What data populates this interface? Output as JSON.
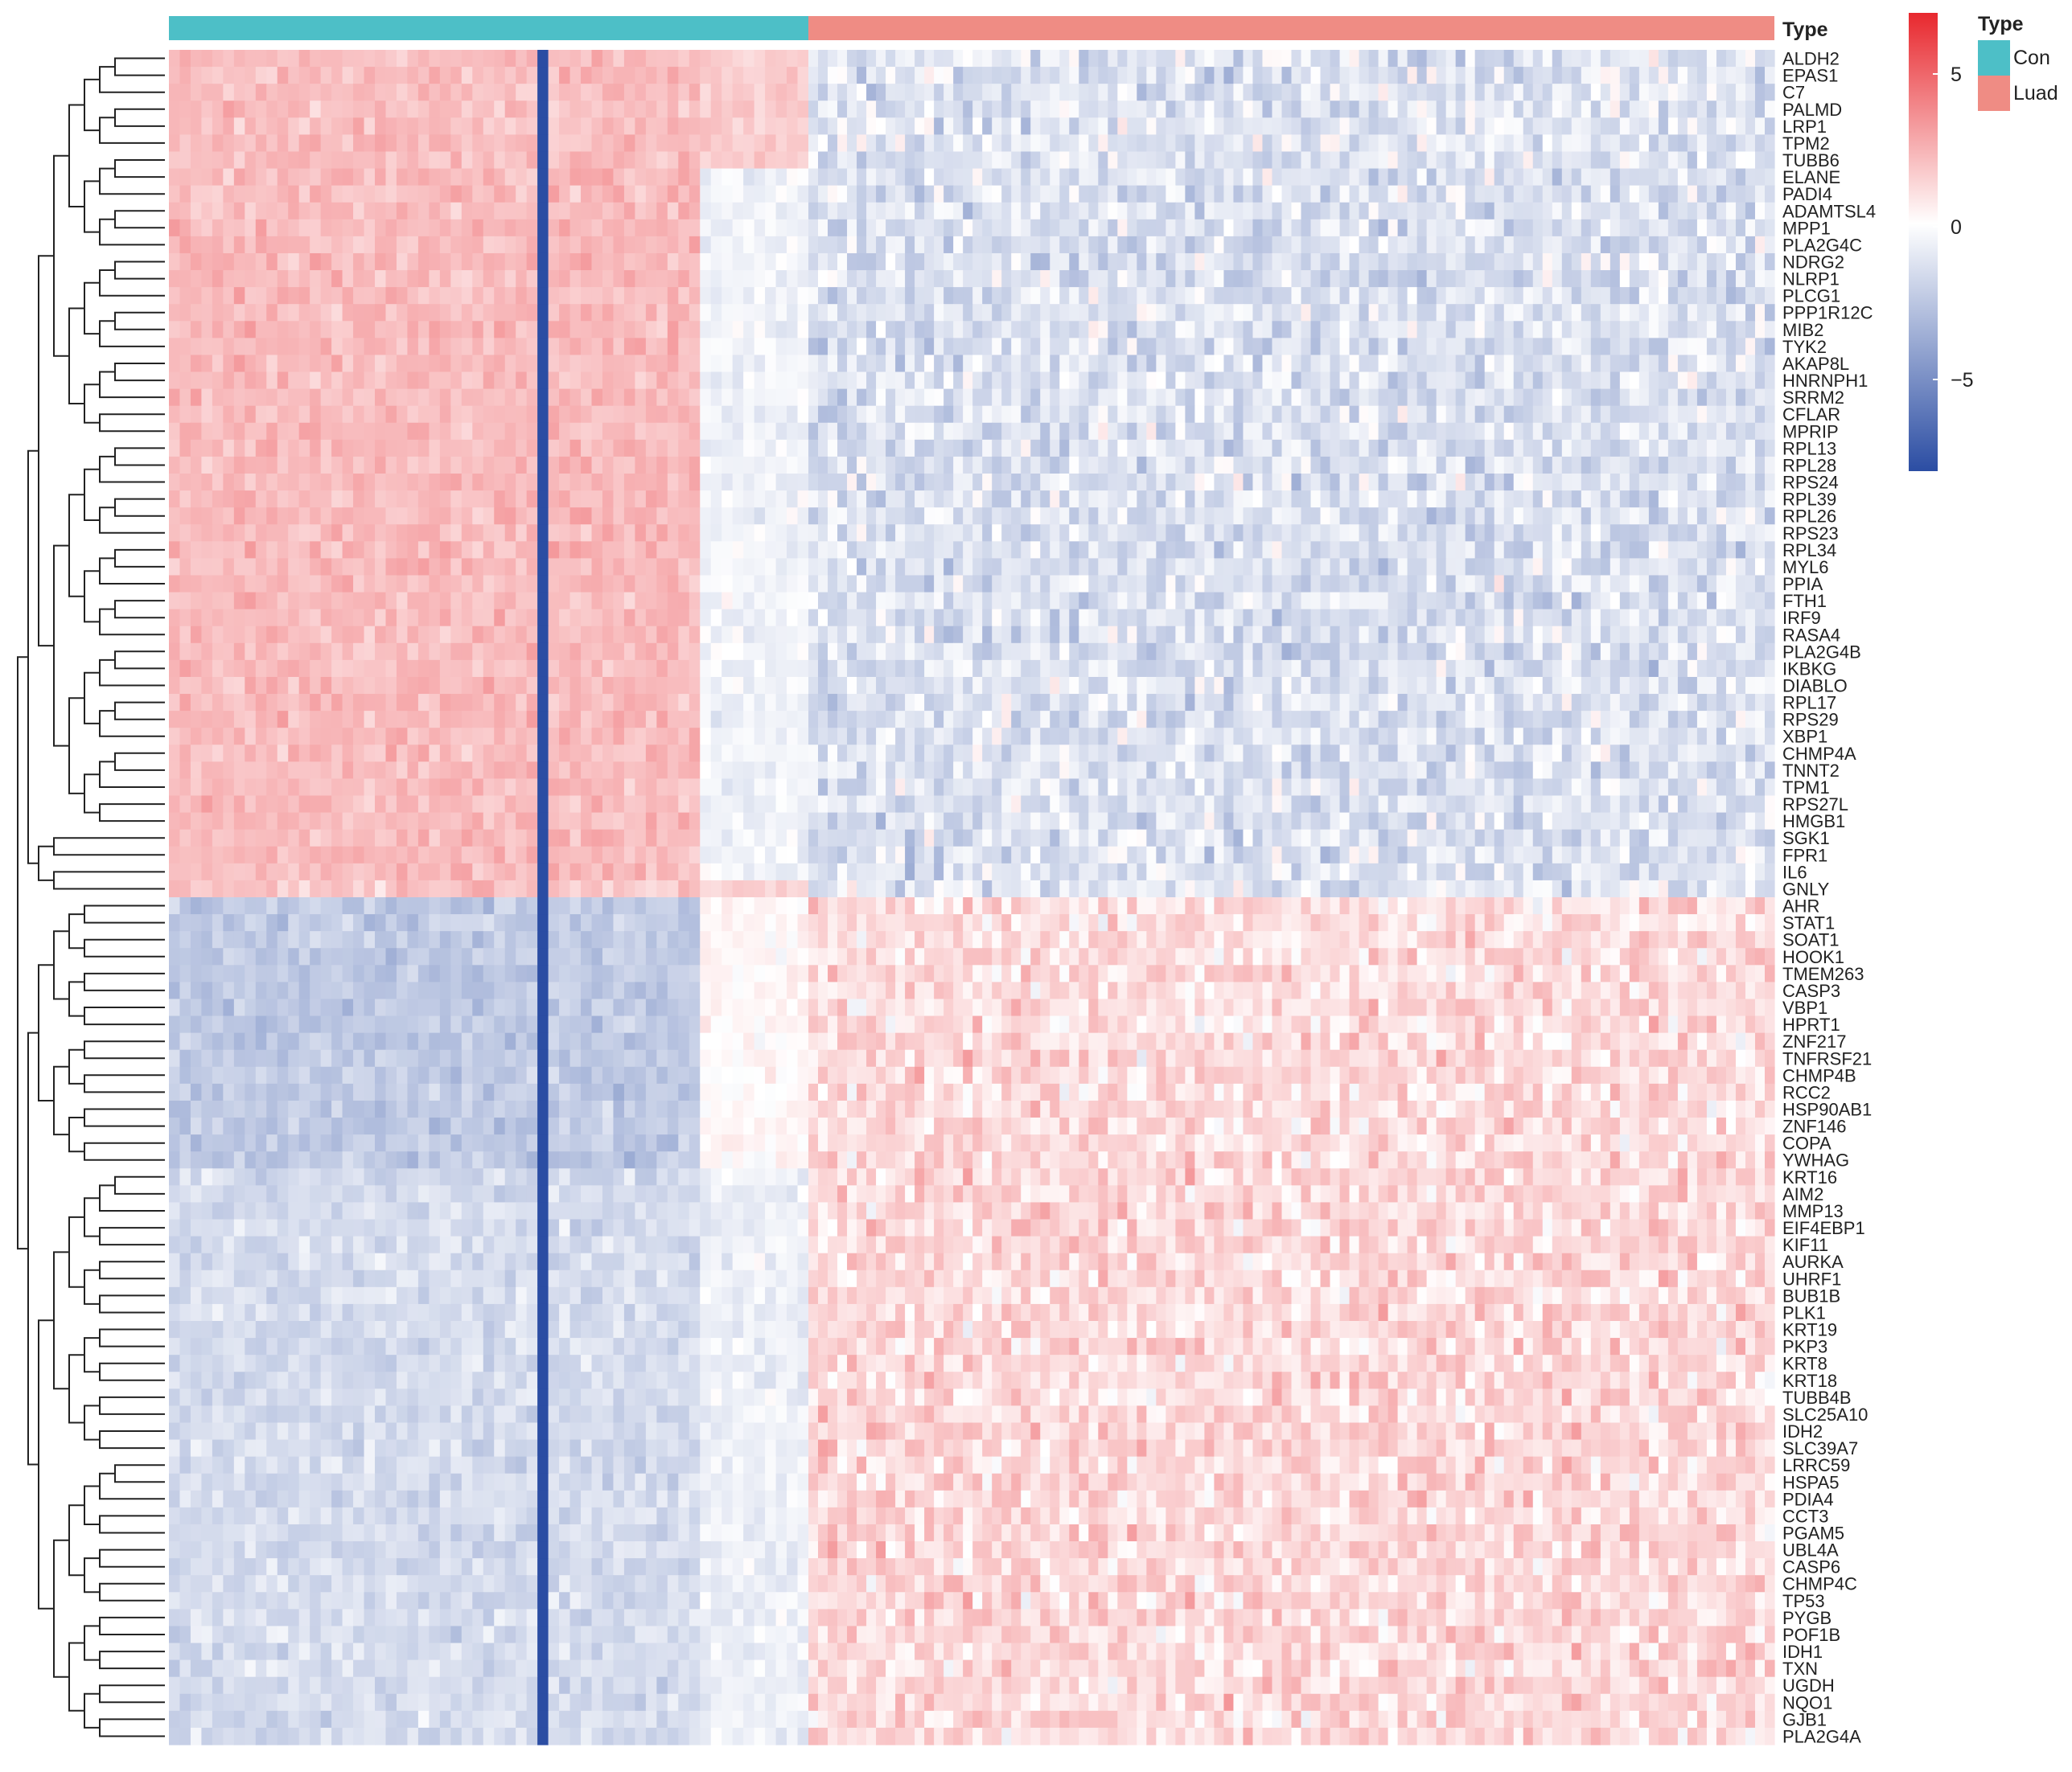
{
  "chart_data": {
    "type": "heatmap",
    "annotation": {
      "title": "Type",
      "groups": [
        {
          "name": "Con",
          "color": "#4DBFC7",
          "n_samples": 59
        },
        {
          "name": "Luad",
          "color": "#EF8C84",
          "n_samples": 100
        }
      ]
    },
    "color_scale": {
      "low": "#2B4DA3",
      "mid": "#FFFFFF",
      "high": "#E8282E",
      "range": [
        -8,
        7
      ],
      "ticks": [
        5,
        0,
        -5
      ],
      "tick_labels": [
        "5",
        "0",
        "−5"
      ]
    },
    "dendrogram": "rows (hierarchical clustering)",
    "rows": [
      "ALDH2",
      "EPAS1",
      "C7",
      "PALMD",
      "LRP1",
      "TPM2",
      "TUBB6",
      "ELANE",
      "PADI4",
      "ADAMTSL4",
      "MPP1",
      "PLA2G4C",
      "NDRG2",
      "NLRP1",
      "PLCG1",
      "PPP1R12C",
      "MIB2",
      "TYK2",
      "AKAP8L",
      "HNRNPH1",
      "SRRM2",
      "CFLAR",
      "MPRIP",
      "RPL13",
      "RPL28",
      "RPS24",
      "RPL39",
      "RPL26",
      "RPS23",
      "RPL34",
      "MYL6",
      "PPIA",
      "FTH1",
      "IRF9",
      "RASA4",
      "PLA2G4B",
      "IKBKG",
      "DIABLO",
      "RPL17",
      "RPS29",
      "XBP1",
      "CHMP4A",
      "TNNT2",
      "TPM1",
      "RPS27L",
      "HMGB1",
      "SGK1",
      "FPR1",
      "IL6",
      "GNLY",
      "AHR",
      "STAT1",
      "SOAT1",
      "HOOK1",
      "TMEM263",
      "CASP3",
      "VBP1",
      "HPRT1",
      "ZNF217",
      "TNFRSF21",
      "CHMP4B",
      "RCC2",
      "HSP90AB1",
      "ZNF146",
      "COPA",
      "YWHAG",
      "KRT16",
      "AIM2",
      "MMP13",
      "EIF4EBP1",
      "KIF11",
      "AURKA",
      "UHRF1",
      "BUB1B",
      "PLK1",
      "KRT19",
      "PKP3",
      "KRT8",
      "KRT18",
      "TUBB4B",
      "SLC25A10",
      "IDH2",
      "SLC39A7",
      "LRRC59",
      "HSPA5",
      "PDIA4",
      "CCT3",
      "PGAM5",
      "UBL4A",
      "CASP6",
      "CHMP4C",
      "TP53",
      "PYGB",
      "POF1B",
      "IDH1",
      "TXN",
      "UGDH",
      "NQO1",
      "GJB1",
      "PLA2G4A"
    ],
    "blocks": [
      {
        "rows": "ALDH2..TUBB6",
        "Con": 1.8,
        "Con_tail": 1.4,
        "Luad": -0.9
      },
      {
        "rows": "ELANE..IL6",
        "Con": 1.9,
        "Con_tail": -0.4,
        "Luad": -1.0
      },
      {
        "rows": "GNLY",
        "Con": 1.6,
        "Con_tail": 1.2,
        "Luad": -0.8
      },
      {
        "rows": "AHR..YWHAG",
        "Con": -1.8,
        "Con_tail": 0.2,
        "Luad": 1.0
      },
      {
        "rows": "KRT16..PLA2G4A",
        "Con": -1.2,
        "Con_tail": -0.5,
        "Luad": 1.1
      }
    ]
  },
  "legend": {
    "title": "Type",
    "items": [
      "Con",
      "Luad"
    ]
  }
}
